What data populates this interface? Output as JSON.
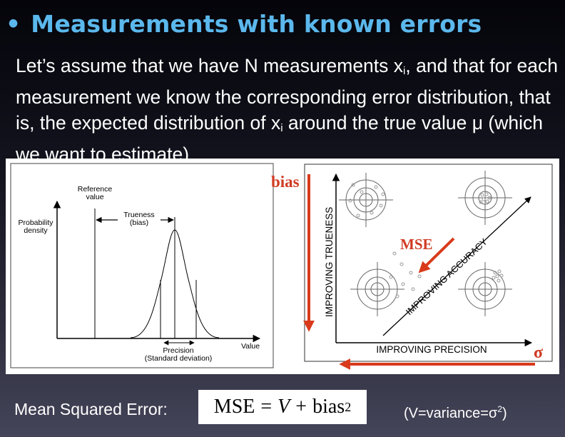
{
  "header": {
    "bullet": "•",
    "title": "Measurements with known errors"
  },
  "intro": {
    "text_a": "Let’s assume that we have N measurements x",
    "sub_i": "i",
    "text_b": ", and that for each measurement we know the corresponding error distribution, that is, the expected distribution of x",
    "sub_i2": "i",
    "text_c": " around the true value μ (which we want to estimate)"
  },
  "left_figure": {
    "reference_line1": "Reference",
    "reference_line2": "value",
    "trueness_line1": "Trueness",
    "trueness_line2": "(bias)",
    "ylabel_line1": "Probability",
    "ylabel_line2": "density",
    "xlabel": "Value",
    "precision_line1": "Precision",
    "precision_line2": "(Standard deviation)"
  },
  "right_figure": {
    "bias_label": "bias",
    "mse_label": "MSE",
    "sigma_label": "σ",
    "y_axis_label": "IMPROVING TRUENESS",
    "x_axis_label": "IMPROVING PRECISION",
    "diagonal_label": "IMPROVING ACCURACY"
  },
  "colors": {
    "title": "#5bb8ec",
    "arrow_red": "#d93a1b",
    "label_red": "#d03a22"
  },
  "footer": {
    "label": "Mean Squared Error:",
    "mse": "MSE",
    "equals": "=",
    "V": "V",
    "plus": "+",
    "bias": "bias",
    "exponent": "2",
    "variance_text": "(V=variance=σ",
    "variance_exp": "2",
    "variance_close": ")"
  }
}
